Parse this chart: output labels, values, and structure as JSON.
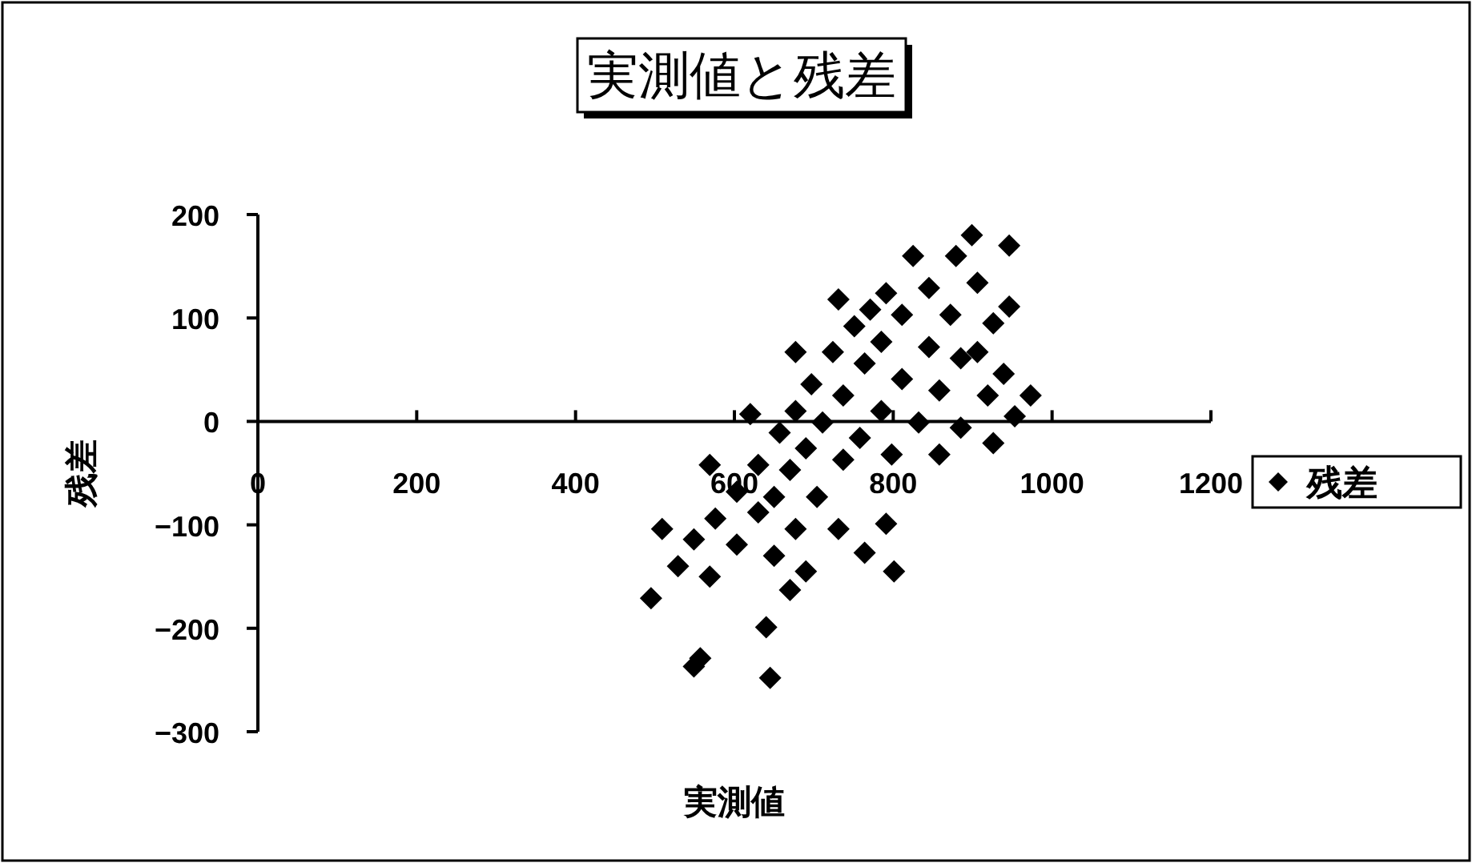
{
  "chart_data": {
    "type": "scatter",
    "title": "実測値と残差",
    "xlabel": "実測値",
    "ylabel": "残差",
    "xlim": [
      0,
      1200
    ],
    "xticks": [
      0,
      200,
      400,
      600,
      800,
      1000,
      1200
    ],
    "ylim": [
      -300,
      200
    ],
    "yticks": [
      -300,
      -200,
      -100,
      0,
      100,
      200
    ],
    "grid": false,
    "legend": "right",
    "marker": "diamond",
    "series": [
      {
        "name": "残差",
        "color": "#000000",
        "x": [
          495,
          529,
          549,
          576,
          603,
          630,
          657,
          677,
          697,
          724,
          751,
          771,
          791,
          825,
          569,
          603,
          630,
          650,
          670,
          690,
          711,
          737,
          764,
          785,
          811,
          845,
          879,
          899,
          704,
          737,
          758,
          785,
          811,
          845,
          872,
          906,
          798,
          832,
          858,
          885,
          858,
          885,
          919,
          939,
          926,
          953,
          973,
          731,
          677,
          620,
          569,
          509,
          650,
          677,
          690,
          670,
          640,
          731,
          764,
          801,
          791,
          946,
          946,
          926,
          906,
          549,
          557,
          645
        ],
        "values": [
          -171,
          -140,
          -114,
          -94,
          -68,
          -42,
          -11,
          10,
          36,
          67,
          92,
          108,
          124,
          160,
          -150,
          -119,
          -88,
          -73,
          -47,
          -26,
          -1,
          25,
          56,
          77,
          103,
          129,
          160,
          180,
          -73,
          -37,
          -16,
          10,
          41,
          72,
          103,
          134,
          -32,
          -1,
          30,
          61,
          -32,
          -6,
          25,
          46,
          -21,
          5,
          25,
          118,
          67,
          7,
          -42,
          -104,
          -130,
          -104,
          -145,
          -163,
          -199,
          -104,
          -127,
          -145,
          -99,
          170,
          111,
          95,
          67,
          -237,
          -229,
          -248
        ]
      }
    ]
  }
}
